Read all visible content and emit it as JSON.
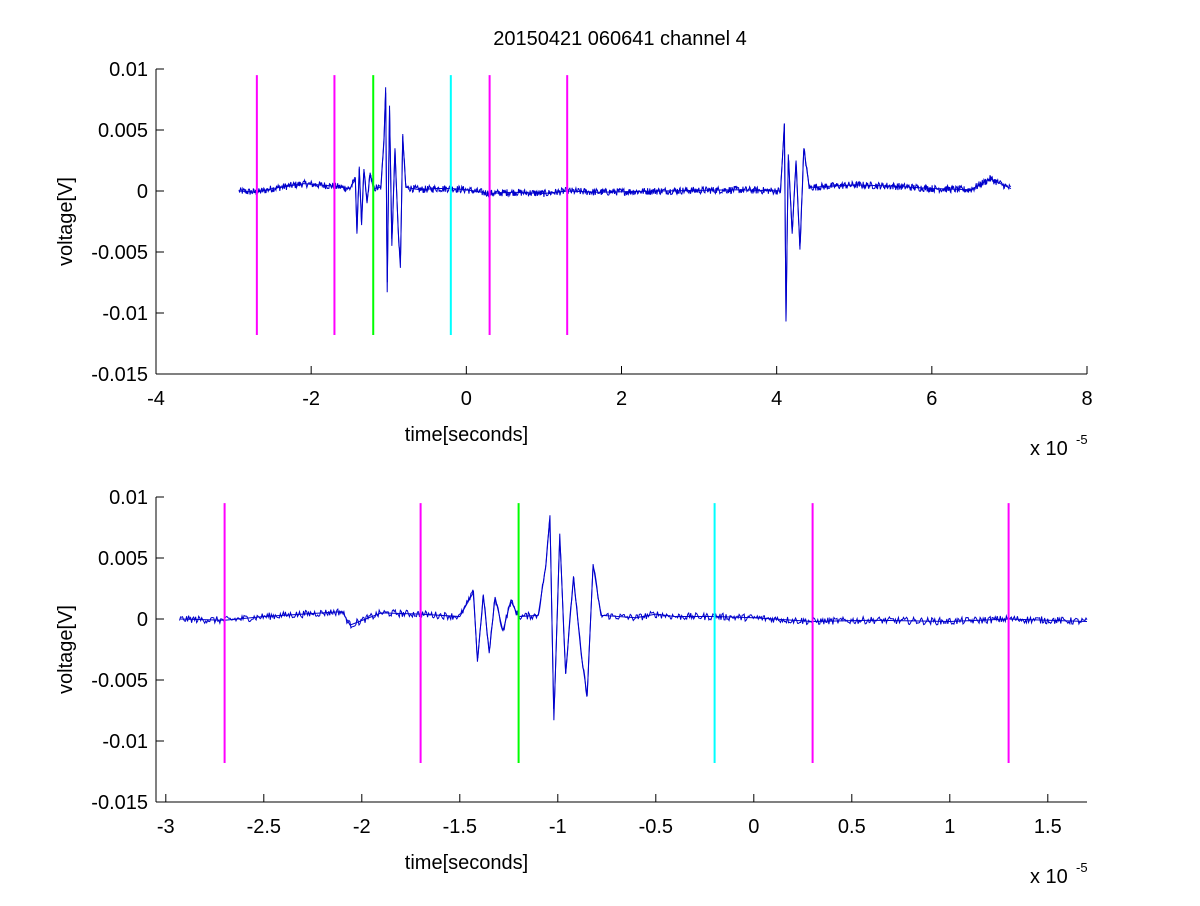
{
  "figure": {
    "title": "20150421 060641 channel 4"
  },
  "chart_data": [
    {
      "type": "line",
      "title": "20150421 060641 channel 4",
      "xlabel": "time[seconds]",
      "ylabel": "voltage[V]",
      "x_multiplier": "x 10",
      "x_exponent": "-5",
      "xlim": [
        -4,
        8
      ],
      "ylim": [
        -0.015,
        0.01
      ],
      "x_ticks": [
        -4,
        -2,
        0,
        2,
        4,
        6,
        8
      ],
      "x_tick_labels": [
        "-4",
        "-2",
        "0",
        "2",
        "4",
        "6",
        "8"
      ],
      "y_ticks": [
        -0.015,
        -0.01,
        -0.005,
        0,
        0.005,
        0.01
      ],
      "y_tick_labels": [
        "-0.015",
        "-0.01",
        "-0.005",
        "0",
        "0.005",
        "0.01"
      ],
      "grid": false,
      "series": [
        {
          "color": "#0000cc",
          "x_range": [
            -2.93,
            7.02
          ],
          "values": [
            [
              -2.93,
              0.0
            ],
            [
              -2.7,
              -0.0001
            ],
            [
              -2.5,
              0.0002
            ],
            [
              -2.3,
              0.0004
            ],
            [
              -2.1,
              0.0006
            ],
            [
              -1.9,
              0.0005
            ],
            [
              -1.7,
              0.0004
            ],
            [
              -1.5,
              0.0002
            ],
            [
              -1.43,
              0.001
            ],
            [
              -1.41,
              -0.0035
            ],
            [
              -1.38,
              0.002
            ],
            [
              -1.35,
              -0.0028
            ],
            [
              -1.32,
              0.0018
            ],
            [
              -1.28,
              -0.001
            ],
            [
              -1.24,
              0.0015
            ],
            [
              -1.2,
              0.0002
            ],
            [
              -1.1,
              0.0003
            ],
            [
              -1.06,
              0.0045
            ],
            [
              -1.04,
              0.0085
            ],
            [
              -1.02,
              -0.0083
            ],
            [
              -0.99,
              0.007
            ],
            [
              -0.96,
              -0.0045
            ],
            [
              -0.92,
              0.0035
            ],
            [
              -0.88,
              -0.003
            ],
            [
              -0.85,
              -0.0063
            ],
            [
              -0.82,
              0.0045
            ],
            [
              -0.78,
              0.0003
            ],
            [
              -0.6,
              0.0001
            ],
            [
              -0.4,
              0.0002
            ],
            [
              -0.2,
              0.0002
            ],
            [
              0.0,
              0.0001
            ],
            [
              0.3,
              -0.0002
            ],
            [
              0.6,
              -0.0001
            ],
            [
              1.0,
              -0.0002
            ],
            [
              1.3,
              0.0
            ],
            [
              1.7,
              -0.0001
            ],
            [
              2.5,
              0.0
            ],
            [
              3.5,
              0.0001
            ],
            [
              4.05,
              0.0
            ],
            [
              4.1,
              0.0055
            ],
            [
              4.12,
              -0.0107
            ],
            [
              4.15,
              0.003
            ],
            [
              4.2,
              -0.0035
            ],
            [
              4.25,
              0.0025
            ],
            [
              4.3,
              -0.0048
            ],
            [
              4.35,
              0.0035
            ],
            [
              4.42,
              0.0003
            ],
            [
              5.0,
              0.0005
            ],
            [
              5.5,
              0.0004
            ],
            [
              6.0,
              0.0002
            ],
            [
              6.5,
              0.0001
            ],
            [
              6.75,
              0.001
            ],
            [
              7.02,
              0.0002
            ]
          ]
        }
      ],
      "markers": [
        {
          "x": -2.7,
          "color": "#ff00ff"
        },
        {
          "x": -1.7,
          "color": "#ff00ff"
        },
        {
          "x": -1.2,
          "color": "#00ff00"
        },
        {
          "x": -0.2,
          "color": "#00ffff"
        },
        {
          "x": 0.3,
          "color": "#ff00ff"
        },
        {
          "x": 1.3,
          "color": "#ff00ff"
        }
      ],
      "marker_y_range": [
        -0.0118,
        0.0095
      ]
    },
    {
      "type": "line",
      "title": "",
      "xlabel": "time[seconds]",
      "ylabel": "voltage[V]",
      "x_multiplier": "x 10",
      "x_exponent": "-5",
      "xlim": [
        -3.05,
        1.7
      ],
      "ylim": [
        -0.015,
        0.01
      ],
      "x_ticks": [
        -3,
        -2.5,
        -2,
        -1.5,
        -1,
        -0.5,
        0,
        0.5,
        1,
        1.5
      ],
      "x_tick_labels": [
        "-3",
        "-2.5",
        "-2",
        "-1.5",
        "-1",
        "-0.5",
        "0",
        "0.5",
        "1",
        "1.5"
      ],
      "y_ticks": [
        -0.015,
        -0.01,
        -0.005,
        0,
        0.005,
        0.01
      ],
      "y_tick_labels": [
        "-0.015",
        "-0.01",
        "-0.005",
        "0",
        "0.005",
        "0.01"
      ],
      "grid": false,
      "series": [
        {
          "color": "#0000cc",
          "x_range": [
            -2.93,
            1.7
          ],
          "values": [
            [
              -2.93,
              0.0
            ],
            [
              -2.7,
              -0.0001
            ],
            [
              -2.5,
              0.0002
            ],
            [
              -2.3,
              0.0004
            ],
            [
              -2.1,
              0.0006
            ],
            [
              -2.06,
              -0.0005
            ],
            [
              -1.9,
              0.0005
            ],
            [
              -1.7,
              0.0004
            ],
            [
              -1.5,
              0.0002
            ],
            [
              -1.43,
              0.0022
            ],
            [
              -1.41,
              -0.0035
            ],
            [
              -1.38,
              0.002
            ],
            [
              -1.35,
              -0.0028
            ],
            [
              -1.32,
              0.0018
            ],
            [
              -1.28,
              -0.001
            ],
            [
              -1.24,
              0.0015
            ],
            [
              -1.2,
              0.0002
            ],
            [
              -1.1,
              0.0003
            ],
            [
              -1.06,
              0.0045
            ],
            [
              -1.04,
              0.0085
            ],
            [
              -1.02,
              -0.0083
            ],
            [
              -0.99,
              0.007
            ],
            [
              -0.96,
              -0.0045
            ],
            [
              -0.92,
              0.0035
            ],
            [
              -0.88,
              -0.003
            ],
            [
              -0.85,
              -0.0063
            ],
            [
              -0.82,
              0.0045
            ],
            [
              -0.78,
              0.0003
            ],
            [
              -0.6,
              0.0001
            ],
            [
              -0.5,
              0.0004
            ],
            [
              -0.4,
              0.0002
            ],
            [
              -0.2,
              0.0002
            ],
            [
              0.0,
              0.0001
            ],
            [
              0.3,
              -0.0002
            ],
            [
              0.6,
              -0.0001
            ],
            [
              1.0,
              -0.0002
            ],
            [
              1.3,
              0.0
            ],
            [
              1.5,
              -0.0001
            ],
            [
              1.7,
              -0.0002
            ]
          ]
        }
      ],
      "markers": [
        {
          "x": -2.7,
          "color": "#ff00ff"
        },
        {
          "x": -1.7,
          "color": "#ff00ff"
        },
        {
          "x": -1.2,
          "color": "#00ff00"
        },
        {
          "x": -0.2,
          "color": "#00ffff"
        },
        {
          "x": 0.3,
          "color": "#ff00ff"
        },
        {
          "x": 1.3,
          "color": "#ff00ff"
        }
      ],
      "marker_y_range": [
        -0.0118,
        0.0095
      ]
    }
  ]
}
